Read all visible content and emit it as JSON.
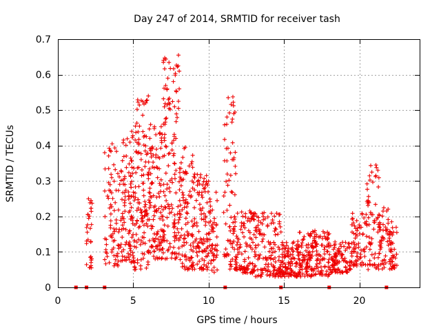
{
  "chart_data": {
    "type": "scatter",
    "title": "Day 247 of 2014, SRMTID for receiver tash",
    "xlabel": "GPS time / hours",
    "ylabel": "SRMTID / TECUs",
    "xlim": [
      0,
      24
    ],
    "ylim": [
      0,
      0.7
    ],
    "xticks": [
      0,
      5,
      10,
      15,
      20
    ],
    "yticks": [
      0,
      0.1,
      0.2,
      0.3,
      0.4,
      0.5,
      0.6,
      0.7
    ],
    "grid": true,
    "marker": "+",
    "color": "#ee0000",
    "zero_markers_x": [
      1.2,
      1.9,
      3.1,
      11.1,
      14.8,
      18.0,
      21.8
    ],
    "clusters": [
      {
        "x": [
          1.9,
          2.3
        ],
        "y": [
          0.05,
          0.25
        ],
        "n": 30
      },
      {
        "x": [
          3.1,
          4.0
        ],
        "y": [
          0.06,
          0.4
        ],
        "n": 70
      },
      {
        "x": [
          4.0,
          5.0
        ],
        "y": [
          0.07,
          0.44
        ],
        "n": 110
      },
      {
        "x": [
          5.0,
          6.0
        ],
        "y": [
          0.05,
          0.54
        ],
        "n": 130
      },
      {
        "x": [
          6.0,
          7.0
        ],
        "y": [
          0.08,
          0.46
        ],
        "n": 130
      },
      {
        "x": [
          7.0,
          8.0
        ],
        "y": [
          0.08,
          0.65
        ],
        "n": 130
      },
      {
        "x": [
          8.0,
          9.0
        ],
        "y": [
          0.05,
          0.4
        ],
        "n": 110
      },
      {
        "x": [
          9.0,
          10.0
        ],
        "y": [
          0.05,
          0.32
        ],
        "n": 100
      },
      {
        "x": [
          10.0,
          10.6
        ],
        "y": [
          0.04,
          0.27
        ],
        "n": 50
      },
      {
        "x": [
          11.0,
          11.8
        ],
        "y": [
          0.05,
          0.54
        ],
        "n": 80
      },
      {
        "x": [
          11.8,
          13.0
        ],
        "y": [
          0.04,
          0.22
        ],
        "n": 100
      },
      {
        "x": [
          13.0,
          14.8
        ],
        "y": [
          0.03,
          0.22
        ],
        "n": 140
      },
      {
        "x": [
          14.8,
          16.0
        ],
        "y": [
          0.03,
          0.13
        ],
        "n": 110
      },
      {
        "x": [
          16.0,
          18.0
        ],
        "y": [
          0.03,
          0.16
        ],
        "n": 170
      },
      {
        "x": [
          18.0,
          19.5
        ],
        "y": [
          0.04,
          0.13
        ],
        "n": 100
      },
      {
        "x": [
          19.5,
          20.5
        ],
        "y": [
          0.06,
          0.21
        ],
        "n": 70
      },
      {
        "x": [
          20.5,
          21.3
        ],
        "y": [
          0.05,
          0.35
        ],
        "n": 60
      },
      {
        "x": [
          21.3,
          22.0
        ],
        "y": [
          0.05,
          0.24
        ],
        "n": 50
      },
      {
        "x": [
          22.0,
          22.5
        ],
        "y": [
          0.05,
          0.19
        ],
        "n": 40
      }
    ],
    "peaks": [
      {
        "x": 2.2,
        "y": 0.245
      },
      {
        "x": 3.6,
        "y": 0.405
      },
      {
        "x": 4.9,
        "y": 0.44
      },
      {
        "x": 6.0,
        "y": 0.54
      },
      {
        "x": 7.1,
        "y": 0.46
      },
      {
        "x": 8.0,
        "y": 0.655
      },
      {
        "x": 8.05,
        "y": 0.61
      },
      {
        "x": 8.05,
        "y": 0.56
      },
      {
        "x": 8.0,
        "y": 0.525
      },
      {
        "x": 11.3,
        "y": 0.535
      },
      {
        "x": 11.2,
        "y": 0.46
      },
      {
        "x": 12.3,
        "y": 0.18
      },
      {
        "x": 14.7,
        "y": 0.185
      },
      {
        "x": 21.1,
        "y": 0.345
      },
      {
        "x": 21.1,
        "y": 0.315
      }
    ]
  }
}
